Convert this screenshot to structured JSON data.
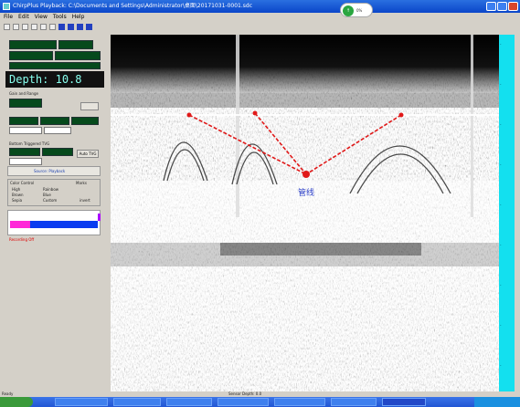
{
  "window": {
    "title": "ChirpPlus Playback: C:\\Documents and Settings\\Administrator\\桌面\\20171031-0001.sdc",
    "badge_text": "0%"
  },
  "menu": [
    "File",
    "Edit",
    "View",
    "Tools",
    "Help"
  ],
  "left_panel": {
    "depth_label": "Depth:",
    "depth_value": "10.8",
    "section_settings": "Gain and Range",
    "section_trigger": "Bottom Triggered TVG",
    "auto_tvg": "Auto TVG",
    "source": "Source:  Playback",
    "color_control": "Color Control",
    "marks": "Marks",
    "colors": [
      "High",
      "Rainbow",
      "Brown",
      "Blue",
      "Sepia",
      "Custom"
    ],
    "invert": "invert",
    "recording": "Recording Off"
  },
  "plot": {
    "annotation": "管线"
  },
  "status": {
    "left": "Ready",
    "center": "Sensor Depth: 0.0"
  },
  "colors": {
    "accent_red": "#e01818",
    "scale_cyan": "#13e0ef",
    "lcd_green": "#064a1c"
  }
}
